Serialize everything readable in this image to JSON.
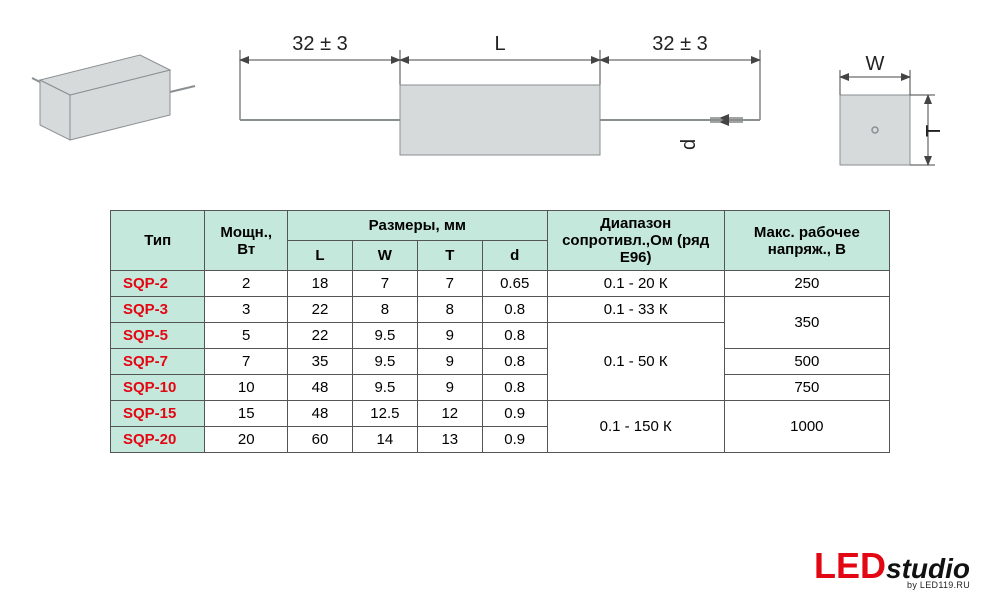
{
  "diagram": {
    "lead_dim_label": "32 ± 3",
    "L_label": "L",
    "W_label": "W",
    "T_label": "T",
    "d_label": "d",
    "colors": {
      "body_fill": "#d6dadb",
      "body_stroke": "#8a8f91",
      "line": "#444444",
      "text": "#222222"
    }
  },
  "table": {
    "header_bg": "#c5e8dc",
    "type_color": "#e30613",
    "columns": {
      "type": "Тип",
      "power": "Мощн., Вт",
      "dims_group": "Размеры, мм",
      "L": "L",
      "W": "W",
      "T": "T",
      "d": "d",
      "range": "Диапазон сопротивл.,Ом (ряд E96)",
      "vmax": "Макс. рабочее напряж., В"
    },
    "rows": [
      {
        "type": "SQP-2",
        "power": "2",
        "L": "18",
        "W": "7",
        "T": "7",
        "d": "0.65"
      },
      {
        "type": "SQP-3",
        "power": "3",
        "L": "22",
        "W": "8",
        "T": "8",
        "d": "0.8"
      },
      {
        "type": "SQP-5",
        "power": "5",
        "L": "22",
        "W": "9.5",
        "T": "9",
        "d": "0.8"
      },
      {
        "type": "SQP-7",
        "power": "7",
        "L": "35",
        "W": "9.5",
        "T": "9",
        "d": "0.8"
      },
      {
        "type": "SQP-10",
        "power": "10",
        "L": "48",
        "W": "9.5",
        "T": "9",
        "d": "0.8"
      },
      {
        "type": "SQP-15",
        "power": "15",
        "L": "48",
        "W": "12.5",
        "T": "12",
        "d": "0.9"
      },
      {
        "type": "SQP-20",
        "power": "20",
        "L": "60",
        "W": "14",
        "T": "13",
        "d": "0.9"
      }
    ],
    "range_spans": [
      {
        "start": 0,
        "span": 1,
        "text": "0.1 - 20 К"
      },
      {
        "start": 1,
        "span": 1,
        "text": "0.1 - 33 К"
      },
      {
        "start": 2,
        "span": 3,
        "text": "0.1 - 50 К"
      },
      {
        "start": 5,
        "span": 2,
        "text": "0.1 - 150 К"
      }
    ],
    "vmax_spans": [
      {
        "start": 0,
        "span": 1,
        "text": "250"
      },
      {
        "start": 1,
        "span": 2,
        "text": "350"
      },
      {
        "start": 3,
        "span": 1,
        "text": "500"
      },
      {
        "start": 4,
        "span": 1,
        "text": "750"
      },
      {
        "start": 5,
        "span": 2,
        "text": "1000"
      }
    ]
  },
  "logo": {
    "led": "LED",
    "studio": "studio",
    "byline": "by LED119.RU",
    "led_color": "#e30613",
    "studio_color": "#111111"
  }
}
